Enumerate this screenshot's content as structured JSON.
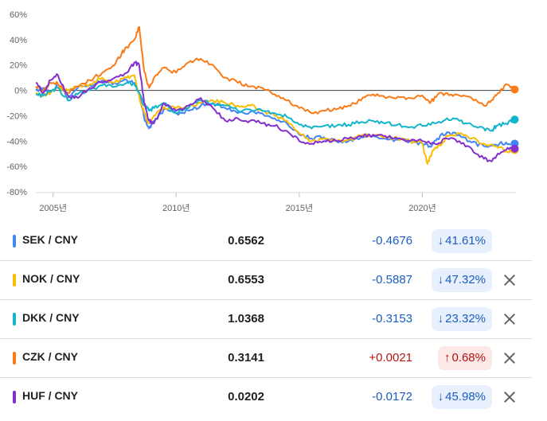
{
  "chart_data": {
    "type": "line",
    "title": "",
    "xlabel": "",
    "ylabel": "",
    "x_range": [
      2004.3,
      2023.8
    ],
    "ylim": [
      -80,
      60
    ],
    "y_ticks": [
      60,
      40,
      20,
      0,
      -20,
      -40,
      -60,
      -80
    ],
    "y_tick_labels": [
      "60%",
      "40%",
      "20%",
      "0%",
      "-20%",
      "-40%",
      "-60%",
      "-80%"
    ],
    "x_ticks": [
      2005,
      2010,
      2015,
      2020
    ],
    "x_tick_labels": [
      "2005년",
      "2010년",
      "2015년",
      "2020년"
    ],
    "grid": false,
    "legend": "none",
    "series": [
      {
        "name": "SEK / CNY",
        "color": "#4285f4",
        "points": [
          [
            2004.3,
            0
          ],
          [
            2004.6,
            2
          ],
          [
            2004.9,
            -2
          ],
          [
            2005.2,
            5
          ],
          [
            2005.6,
            -6
          ],
          [
            2006.0,
            2
          ],
          [
            2006.5,
            4
          ],
          [
            2007.0,
            8
          ],
          [
            2007.5,
            6
          ],
          [
            2008.0,
            8
          ],
          [
            2008.3,
            6
          ],
          [
            2008.5,
            -2
          ],
          [
            2008.7,
            -22
          ],
          [
            2008.9,
            -30
          ],
          [
            2009.1,
            -25
          ],
          [
            2009.5,
            -15
          ],
          [
            2010.0,
            -18
          ],
          [
            2010.5,
            -16
          ],
          [
            2011.0,
            -12
          ],
          [
            2011.5,
            -10
          ],
          [
            2012.0,
            -14
          ],
          [
            2012.5,
            -18
          ],
          [
            2013.0,
            -17
          ],
          [
            2013.5,
            -18
          ],
          [
            2014.0,
            -22
          ],
          [
            2014.5,
            -26
          ],
          [
            2015.0,
            -35
          ],
          [
            2015.5,
            -38
          ],
          [
            2016.0,
            -37
          ],
          [
            2016.5,
            -40
          ],
          [
            2017.0,
            -40
          ],
          [
            2017.5,
            -37
          ],
          [
            2018.0,
            -36
          ],
          [
            2018.5,
            -38
          ],
          [
            2019.0,
            -39
          ],
          [
            2019.5,
            -40
          ],
          [
            2020.0,
            -42
          ],
          [
            2020.3,
            -44
          ],
          [
            2020.6,
            -38
          ],
          [
            2021.0,
            -33
          ],
          [
            2021.5,
            -35
          ],
          [
            2022.0,
            -41
          ],
          [
            2022.5,
            -44
          ],
          [
            2023.0,
            -43
          ],
          [
            2023.4,
            -41
          ],
          [
            2023.75,
            -42
          ]
        ]
      },
      {
        "name": "NOK / CNY",
        "color": "#fbbc04",
        "points": [
          [
            2004.3,
            -2
          ],
          [
            2004.6,
            -4
          ],
          [
            2004.9,
            -2
          ],
          [
            2005.2,
            2
          ],
          [
            2005.6,
            0
          ],
          [
            2006.0,
            3
          ],
          [
            2006.5,
            5
          ],
          [
            2007.0,
            10
          ],
          [
            2007.5,
            6
          ],
          [
            2008.0,
            10
          ],
          [
            2008.3,
            12
          ],
          [
            2008.5,
            -5
          ],
          [
            2008.7,
            -18
          ],
          [
            2008.9,
            -26
          ],
          [
            2009.1,
            -20
          ],
          [
            2009.5,
            -13
          ],
          [
            2010.0,
            -14
          ],
          [
            2010.5,
            -12
          ],
          [
            2011.0,
            -10
          ],
          [
            2011.5,
            -8
          ],
          [
            2012.0,
            -10
          ],
          [
            2012.5,
            -12
          ],
          [
            2013.0,
            -12
          ],
          [
            2013.5,
            -16
          ],
          [
            2014.0,
            -20
          ],
          [
            2014.5,
            -24
          ],
          [
            2015.0,
            -34
          ],
          [
            2015.5,
            -40
          ],
          [
            2016.0,
            -38
          ],
          [
            2016.5,
            -40
          ],
          [
            2017.0,
            -39
          ],
          [
            2017.5,
            -36
          ],
          [
            2018.0,
            -35
          ],
          [
            2018.5,
            -37
          ],
          [
            2019.0,
            -38
          ],
          [
            2019.5,
            -40
          ],
          [
            2020.0,
            -42
          ],
          [
            2020.2,
            -58
          ],
          [
            2020.4,
            -48
          ],
          [
            2020.8,
            -42
          ],
          [
            2021.0,
            -36
          ],
          [
            2021.5,
            -34
          ],
          [
            2022.0,
            -38
          ],
          [
            2022.5,
            -42
          ],
          [
            2023.0,
            -44
          ],
          [
            2023.4,
            -48
          ],
          [
            2023.75,
            -47
          ]
        ]
      },
      {
        "name": "DKK / CNY",
        "color": "#12b5cb",
        "points": [
          [
            2004.3,
            -3
          ],
          [
            2004.6,
            -4
          ],
          [
            2004.9,
            -1
          ],
          [
            2005.2,
            2
          ],
          [
            2005.6,
            -8
          ],
          [
            2006.0,
            -3
          ],
          [
            2006.5,
            0
          ],
          [
            2007.0,
            4
          ],
          [
            2007.5,
            3
          ],
          [
            2008.0,
            6
          ],
          [
            2008.3,
            5
          ],
          [
            2008.5,
            -2
          ],
          [
            2008.7,
            -12
          ],
          [
            2008.9,
            -16
          ],
          [
            2009.1,
            -14
          ],
          [
            2009.5,
            -10
          ],
          [
            2010.0,
            -18
          ],
          [
            2010.5,
            -14
          ],
          [
            2011.0,
            -8
          ],
          [
            2011.5,
            -10
          ],
          [
            2012.0,
            -12
          ],
          [
            2012.5,
            -16
          ],
          [
            2013.0,
            -15
          ],
          [
            2013.5,
            -16
          ],
          [
            2014.0,
            -18
          ],
          [
            2014.5,
            -21
          ],
          [
            2015.0,
            -27
          ],
          [
            2015.5,
            -30
          ],
          [
            2016.0,
            -28
          ],
          [
            2016.5,
            -28
          ],
          [
            2017.0,
            -27
          ],
          [
            2017.5,
            -25
          ],
          [
            2018.0,
            -24
          ],
          [
            2018.5,
            -26
          ],
          [
            2019.0,
            -27
          ],
          [
            2019.5,
            -29
          ],
          [
            2020.0,
            -28
          ],
          [
            2020.5,
            -26
          ],
          [
            2021.0,
            -22
          ],
          [
            2021.5,
            -24
          ],
          [
            2022.0,
            -27
          ],
          [
            2022.5,
            -30
          ],
          [
            2022.8,
            -32
          ],
          [
            2023.0,
            -28
          ],
          [
            2023.4,
            -26
          ],
          [
            2023.75,
            -23
          ]
        ]
      },
      {
        "name": "CZK / CNY",
        "color": "#fa7b17",
        "points": [
          [
            2004.3,
            3
          ],
          [
            2004.6,
            0
          ],
          [
            2004.9,
            6
          ],
          [
            2005.2,
            5
          ],
          [
            2005.6,
            -2
          ],
          [
            2006.0,
            3
          ],
          [
            2006.5,
            8
          ],
          [
            2007.0,
            14
          ],
          [
            2007.5,
            20
          ],
          [
            2007.8,
            30
          ],
          [
            2008.0,
            34
          ],
          [
            2008.3,
            40
          ],
          [
            2008.5,
            50
          ],
          [
            2008.7,
            15
          ],
          [
            2008.9,
            2
          ],
          [
            2009.1,
            10
          ],
          [
            2009.5,
            18
          ],
          [
            2010.0,
            14
          ],
          [
            2010.5,
            22
          ],
          [
            2011.0,
            25
          ],
          [
            2011.5,
            20
          ],
          [
            2012.0,
            10
          ],
          [
            2012.5,
            6
          ],
          [
            2013.0,
            3
          ],
          [
            2013.5,
            2
          ],
          [
            2014.0,
            -3
          ],
          [
            2014.5,
            -8
          ],
          [
            2015.0,
            -14
          ],
          [
            2015.5,
            -18
          ],
          [
            2016.0,
            -16
          ],
          [
            2016.5,
            -15
          ],
          [
            2017.0,
            -12
          ],
          [
            2017.5,
            -8
          ],
          [
            2018.0,
            -3
          ],
          [
            2018.5,
            -6
          ],
          [
            2019.0,
            -5
          ],
          [
            2019.5,
            -6
          ],
          [
            2020.0,
            -4
          ],
          [
            2020.3,
            -10
          ],
          [
            2020.6,
            -4
          ],
          [
            2021.0,
            -2
          ],
          [
            2021.5,
            -4
          ],
          [
            2022.0,
            -6
          ],
          [
            2022.5,
            -12
          ],
          [
            2022.8,
            -8
          ],
          [
            2023.0,
            -4
          ],
          [
            2023.4,
            5
          ],
          [
            2023.75,
            0.68
          ]
        ]
      },
      {
        "name": "HUF / CNY",
        "color": "#8430ce",
        "points": [
          [
            2004.3,
            6
          ],
          [
            2004.6,
            -2
          ],
          [
            2004.9,
            8
          ],
          [
            2005.2,
            12
          ],
          [
            2005.6,
            -4
          ],
          [
            2006.0,
            -6
          ],
          [
            2006.5,
            2
          ],
          [
            2007.0,
            6
          ],
          [
            2007.5,
            10
          ],
          [
            2008.0,
            14
          ],
          [
            2008.3,
            22
          ],
          [
            2008.5,
            20
          ],
          [
            2008.7,
            -10
          ],
          [
            2008.9,
            -24
          ],
          [
            2009.1,
            -26
          ],
          [
            2009.5,
            -10
          ],
          [
            2010.0,
            -16
          ],
          [
            2010.5,
            -12
          ],
          [
            2011.0,
            -6
          ],
          [
            2011.5,
            -14
          ],
          [
            2012.0,
            -24
          ],
          [
            2012.5,
            -22
          ],
          [
            2013.0,
            -24
          ],
          [
            2013.5,
            -26
          ],
          [
            2014.0,
            -28
          ],
          [
            2014.5,
            -32
          ],
          [
            2015.0,
            -40
          ],
          [
            2015.5,
            -42
          ],
          [
            2016.0,
            -40
          ],
          [
            2016.5,
            -40
          ],
          [
            2017.0,
            -38
          ],
          [
            2017.5,
            -36
          ],
          [
            2018.0,
            -35
          ],
          [
            2018.5,
            -36
          ],
          [
            2019.0,
            -38
          ],
          [
            2019.5,
            -40
          ],
          [
            2020.0,
            -40
          ],
          [
            2020.5,
            -42
          ],
          [
            2021.0,
            -38
          ],
          [
            2021.5,
            -40
          ],
          [
            2022.0,
            -46
          ],
          [
            2022.5,
            -54
          ],
          [
            2022.8,
            -56
          ],
          [
            2023.0,
            -52
          ],
          [
            2023.4,
            -47
          ],
          [
            2023.75,
            -45.98
          ]
        ]
      }
    ]
  },
  "rows": [
    {
      "pair": "SEK / CNY",
      "color": "#4285f4",
      "price": "0.6562",
      "change": "-0.4676",
      "direction": "neg",
      "arrow": "↓",
      "percent": "41.61%",
      "closable": false
    },
    {
      "pair": "NOK / CNY",
      "color": "#fbbc04",
      "price": "0.6553",
      "change": "-0.5887",
      "direction": "neg",
      "arrow": "↓",
      "percent": "47.32%",
      "closable": true
    },
    {
      "pair": "DKK / CNY",
      "color": "#12b5cb",
      "price": "1.0368",
      "change": "-0.3153",
      "direction": "neg",
      "arrow": "↓",
      "percent": "23.32%",
      "closable": true
    },
    {
      "pair": "CZK / CNY",
      "color": "#fa7b17",
      "price": "0.3141",
      "change": "+0.0021",
      "direction": "pos",
      "arrow": "↑",
      "percent": "0.68%",
      "closable": true
    },
    {
      "pair": "HUF / CNY",
      "color": "#8430ce",
      "price": "0.0202",
      "change": "-0.0172",
      "direction": "neg",
      "arrow": "↓",
      "percent": "45.98%",
      "closable": true
    }
  ]
}
